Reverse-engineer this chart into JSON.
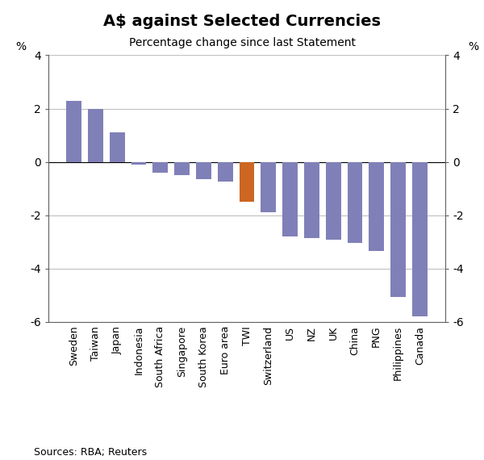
{
  "title": "A$ against Selected Currencies",
  "subtitle": "Percentage change since last Statement",
  "ylabel_left": "%",
  "ylabel_right": "%",
  "source": "Sources: RBA; Reuters",
  "categories": [
    "Sweden",
    "Taiwan",
    "Japan",
    "Indonesia",
    "South Africa",
    "Singapore",
    "South Korea",
    "Euro area",
    "TWI",
    "Switzerland",
    "US",
    "NZ",
    "UK",
    "China",
    "PNG",
    "Philippines",
    "Canada"
  ],
  "values": [
    2.3,
    2.0,
    1.1,
    -0.1,
    -0.4,
    -0.5,
    -0.65,
    -0.75,
    -1.5,
    -1.9,
    -2.8,
    -2.85,
    -2.9,
    -3.05,
    -3.35,
    -5.05,
    -5.8
  ],
  "bar_colors": [
    "#8080b8",
    "#8080b8",
    "#8080b8",
    "#8080b8",
    "#8080b8",
    "#8080b8",
    "#8080b8",
    "#8080b8",
    "#cc6622",
    "#8080b8",
    "#8080b8",
    "#8080b8",
    "#8080b8",
    "#8080b8",
    "#8080b8",
    "#8080b8",
    "#8080b8"
  ],
  "ylim": [
    -6,
    4
  ],
  "yticks": [
    -6,
    -4,
    -2,
    0,
    2,
    4
  ],
  "grid_color": "#c0c0c0",
  "background_color": "#ffffff",
  "bar_width": 0.7,
  "title_fontsize": 14,
  "subtitle_fontsize": 10,
  "tick_fontsize": 10,
  "label_fontsize": 9,
  "source_fontsize": 9
}
